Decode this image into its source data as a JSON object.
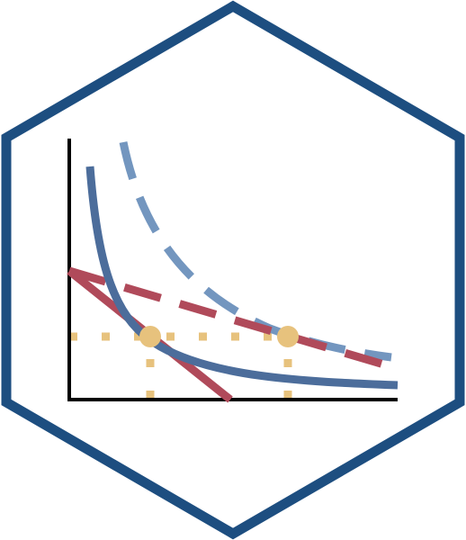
{
  "logo": {
    "name": "indifference-curve-hexagon-logo",
    "colors": {
      "hexagon_border": "#1d4e80",
      "hexagon_fill": "#ffffff",
      "axes": "#000000",
      "indifference_curve_solid": "#4c6d9b",
      "indifference_curve_dashed": "#7396bf",
      "budget_line_solid": "#b04a5a",
      "budget_line_dashed": "#b04a5a",
      "tangency_points": "#e7c27d",
      "guide_lines": "#e7c27d"
    },
    "elements": [
      "hexagon-border",
      "axes",
      "indifference-curve-solid",
      "indifference-curve-dashed",
      "budget-line-solid",
      "budget-line-dashed",
      "tangency-point",
      "dotted-guide-lines"
    ]
  }
}
